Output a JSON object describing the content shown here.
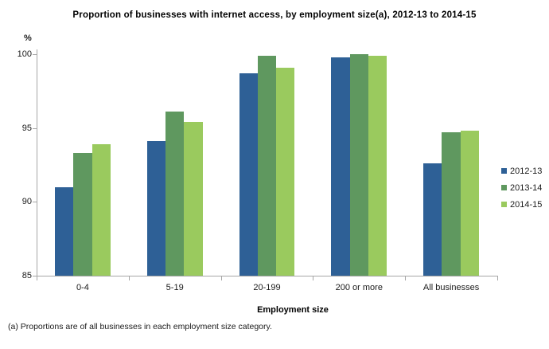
{
  "title": "Proportion of businesses with internet access, by employment size(a), 2012-13 to 2014-15",
  "footnote": "(a) Proportions are of all businesses in each employment size category.",
  "chart_data": {
    "type": "bar",
    "title": "Proportion of businesses with internet access, by employment size(a), 2012-13 to 2014-15",
    "categories": [
      "0-4",
      "5-19",
      "20-199",
      "200 or more",
      "All businesses"
    ],
    "series": [
      {
        "name": "2012-13",
        "color": "#2E6096",
        "values": [
          91.0,
          94.1,
          98.7,
          99.8,
          92.6
        ]
      },
      {
        "name": "2013-14",
        "color": "#5F985F",
        "values": [
          93.3,
          96.1,
          99.9,
          100.0,
          94.7
        ]
      },
      {
        "name": "2014-15",
        "color": "#9ACA5E",
        "values": [
          93.9,
          95.4,
          99.1,
          99.9,
          94.8
        ]
      }
    ],
    "xlabel": "Employment size",
    "ylabel": "%",
    "ylim": [
      85,
      100
    ],
    "yticks": [
      85,
      90,
      95,
      100
    ],
    "grid": false,
    "legend_position": "right"
  },
  "colors": {
    "axis": "#a6a6a6",
    "text": "#1a1a1a"
  }
}
